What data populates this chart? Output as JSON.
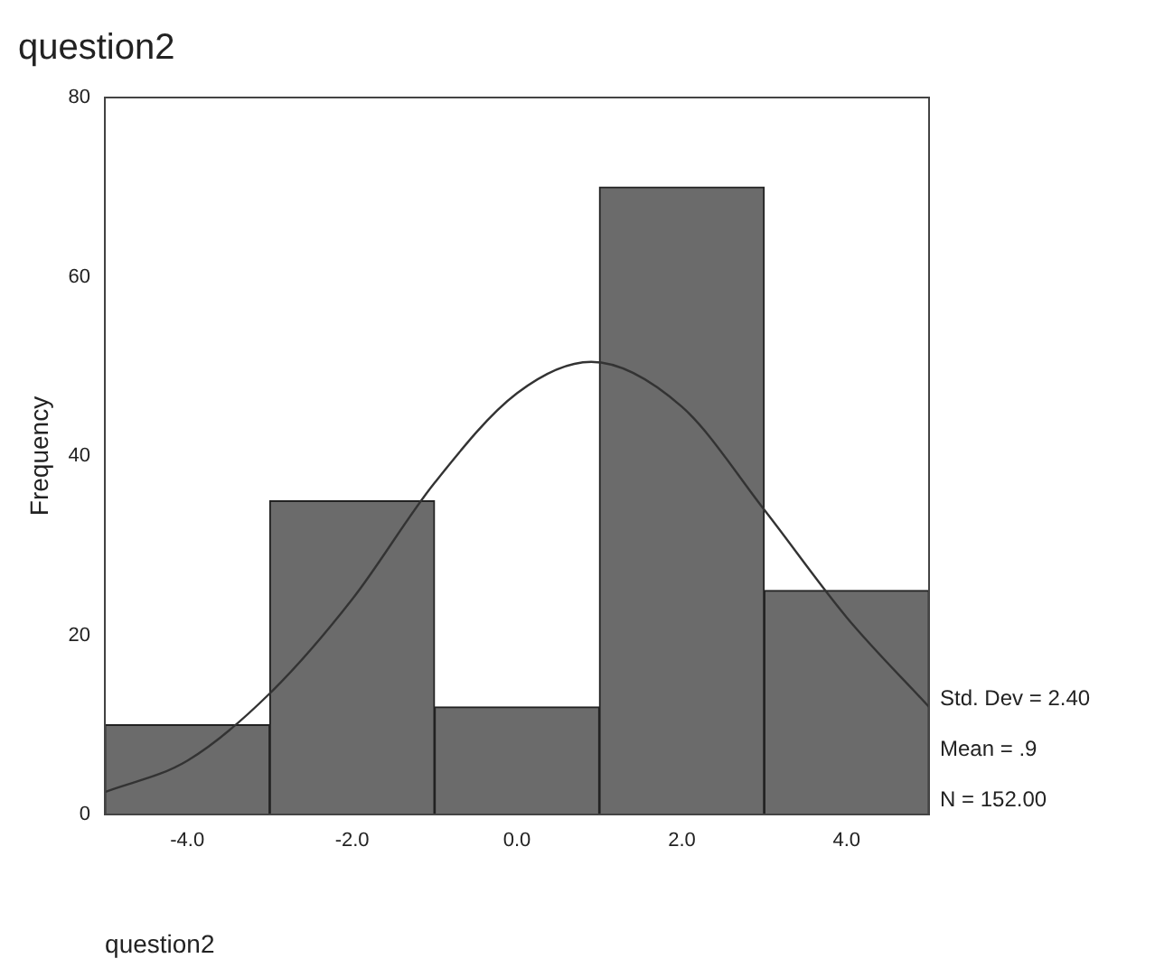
{
  "chart_data": {
    "type": "histogram",
    "title": "question2",
    "xlabel": "question2",
    "ylabel": "Frequency",
    "bins": [
      -5,
      -3,
      -1,
      1,
      3,
      5
    ],
    "values": [
      10,
      35,
      12,
      70,
      25
    ],
    "color": "#6b6b6b",
    "series": [
      {
        "type": "line",
        "color": "#333333",
        "x": [
          -5,
          -4,
          -3,
          -2,
          -1,
          0,
          0.9,
          2,
          3,
          4,
          5
        ],
        "values": [
          2.5,
          6,
          13.5,
          24,
          37,
          47,
          50.5,
          45.5,
          34,
          22,
          12
        ]
      }
    ],
    "xlim": [
      -5,
      5
    ],
    "xticks": [
      {
        "value": -4,
        "label": "-4.0"
      },
      {
        "value": -2,
        "label": "-2.0"
      },
      {
        "value": 0,
        "label": "0.0"
      },
      {
        "value": 2,
        "label": "2.0"
      },
      {
        "value": 4,
        "label": "4.0"
      }
    ],
    "ylim": [
      0,
      80
    ],
    "yticks": [
      0,
      20,
      40,
      60,
      80
    ],
    "grid": false,
    "legend": false,
    "marker": "none",
    "line_style": "solid",
    "annotations": [
      "Std. Dev = 2.40",
      "Mean = .9",
      "N = 152.00"
    ]
  }
}
